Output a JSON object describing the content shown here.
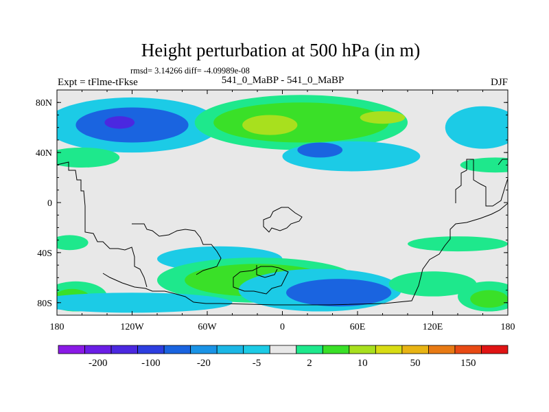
{
  "chart_data": {
    "type": "heatmap",
    "title": "Height perturbation at 500 hPa (in m)",
    "subtitle": "rmsd= 3.14266  diff= -4.09989e-08",
    "left_label": "Expt = tFlme-tFkse",
    "center_label": "541_0_MaBP - 541_0_MaBP",
    "right_label": "DJF",
    "x_range": [
      -180,
      180
    ],
    "y_range": [
      -90,
      90
    ],
    "x_ticks": [
      {
        "value": -180,
        "label": "180"
      },
      {
        "value": -120,
        "label": "120W"
      },
      {
        "value": -60,
        "label": "60W"
      },
      {
        "value": 0,
        "label": "0"
      },
      {
        "value": 60,
        "label": "60E"
      },
      {
        "value": 120,
        "label": "120E"
      },
      {
        "value": 180,
        "label": "180"
      }
    ],
    "y_ticks": [
      {
        "value": 80,
        "label": "80N"
      },
      {
        "value": 40,
        "label": "40N"
      },
      {
        "value": 0,
        "label": "0"
      },
      {
        "value": -40,
        "label": "40S"
      },
      {
        "value": -80,
        "label": "80S"
      }
    ],
    "colorbar": {
      "colors": [
        "#8a1ae6",
        "#6a1ee6",
        "#4b28e0",
        "#2d3ee0",
        "#1a64e0",
        "#1a93e6",
        "#1bb7e6",
        "#1ccbe6",
        "#e8e8e8",
        "#1ee88c",
        "#3ae028",
        "#a8e01e",
        "#d8dc14",
        "#e8b414",
        "#e87a14",
        "#e84a14",
        "#e01414"
      ],
      "tick_labels": [
        "-200",
        "-100",
        "-20",
        "-5",
        "2",
        "10",
        "50",
        "150"
      ]
    },
    "anomalies": [
      {
        "lon": -120,
        "lat": 62,
        "rlon": 70,
        "rlat": 22,
        "value": -5
      },
      {
        "lon": -120,
        "lat": 62,
        "rlon": 45,
        "rlat": 14,
        "value": -20
      },
      {
        "lon": -130,
        "lat": 64,
        "rlon": 12,
        "rlat": 5,
        "value": -100
      },
      {
        "lon": 15,
        "lat": 64,
        "rlon": 85,
        "rlat": 22,
        "value": 2
      },
      {
        "lon": 15,
        "lat": 64,
        "rlon": 70,
        "rlat": 16,
        "value": 10
      },
      {
        "lon": -10,
        "lat": 62,
        "rlon": 22,
        "rlat": 8,
        "value": 50
      },
      {
        "lon": 80,
        "lat": 68,
        "rlon": 18,
        "rlat": 5,
        "value": 50
      },
      {
        "lon": 55,
        "lat": 37,
        "rlon": 55,
        "rlat": 12,
        "value": -5
      },
      {
        "lon": 30,
        "lat": 42,
        "rlon": 18,
        "rlat": 6,
        "value": -20
      },
      {
        "lon": 160,
        "lat": 60,
        "rlon": 30,
        "rlat": 17,
        "value": -5
      },
      {
        "lon": -160,
        "lat": 36,
        "rlon": 30,
        "rlat": 8,
        "value": 2
      },
      {
        "lon": 170,
        "lat": 30,
        "rlon": 28,
        "rlat": 6,
        "value": 2
      },
      {
        "lon": -50,
        "lat": -45,
        "rlon": 50,
        "rlat": 10,
        "value": -5
      },
      {
        "lon": -20,
        "lat": -62,
        "rlon": 80,
        "rlat": 18,
        "value": 2
      },
      {
        "lon": -20,
        "lat": -62,
        "rlon": 58,
        "rlat": 13,
        "value": 10
      },
      {
        "lon": 30,
        "lat": -70,
        "rlon": 65,
        "rlat": 17,
        "value": -5
      },
      {
        "lon": 45,
        "lat": -72,
        "rlon": 42,
        "rlat": 11,
        "value": -20
      },
      {
        "lon": 120,
        "lat": -65,
        "rlon": 35,
        "rlat": 10,
        "value": 2
      },
      {
        "lon": -165,
        "lat": -75,
        "rlon": 25,
        "rlat": 12,
        "value": 2
      },
      {
        "lon": -168,
        "lat": -77,
        "rlon": 15,
        "rlat": 8,
        "value": 10
      },
      {
        "lon": 165,
        "lat": -75,
        "rlon": 25,
        "rlat": 12,
        "value": 2
      },
      {
        "lon": 165,
        "lat": -77,
        "rlon": 15,
        "rlat": 7,
        "value": 10
      },
      {
        "lon": -120,
        "lat": -80,
        "rlon": 80,
        "rlat": 8,
        "value": -5
      },
      {
        "lon": 140,
        "lat": -33,
        "rlon": 40,
        "rlat": 6,
        "value": 2
      },
      {
        "lon": -170,
        "lat": -32,
        "rlon": 15,
        "rlat": 6,
        "value": 2
      }
    ]
  }
}
